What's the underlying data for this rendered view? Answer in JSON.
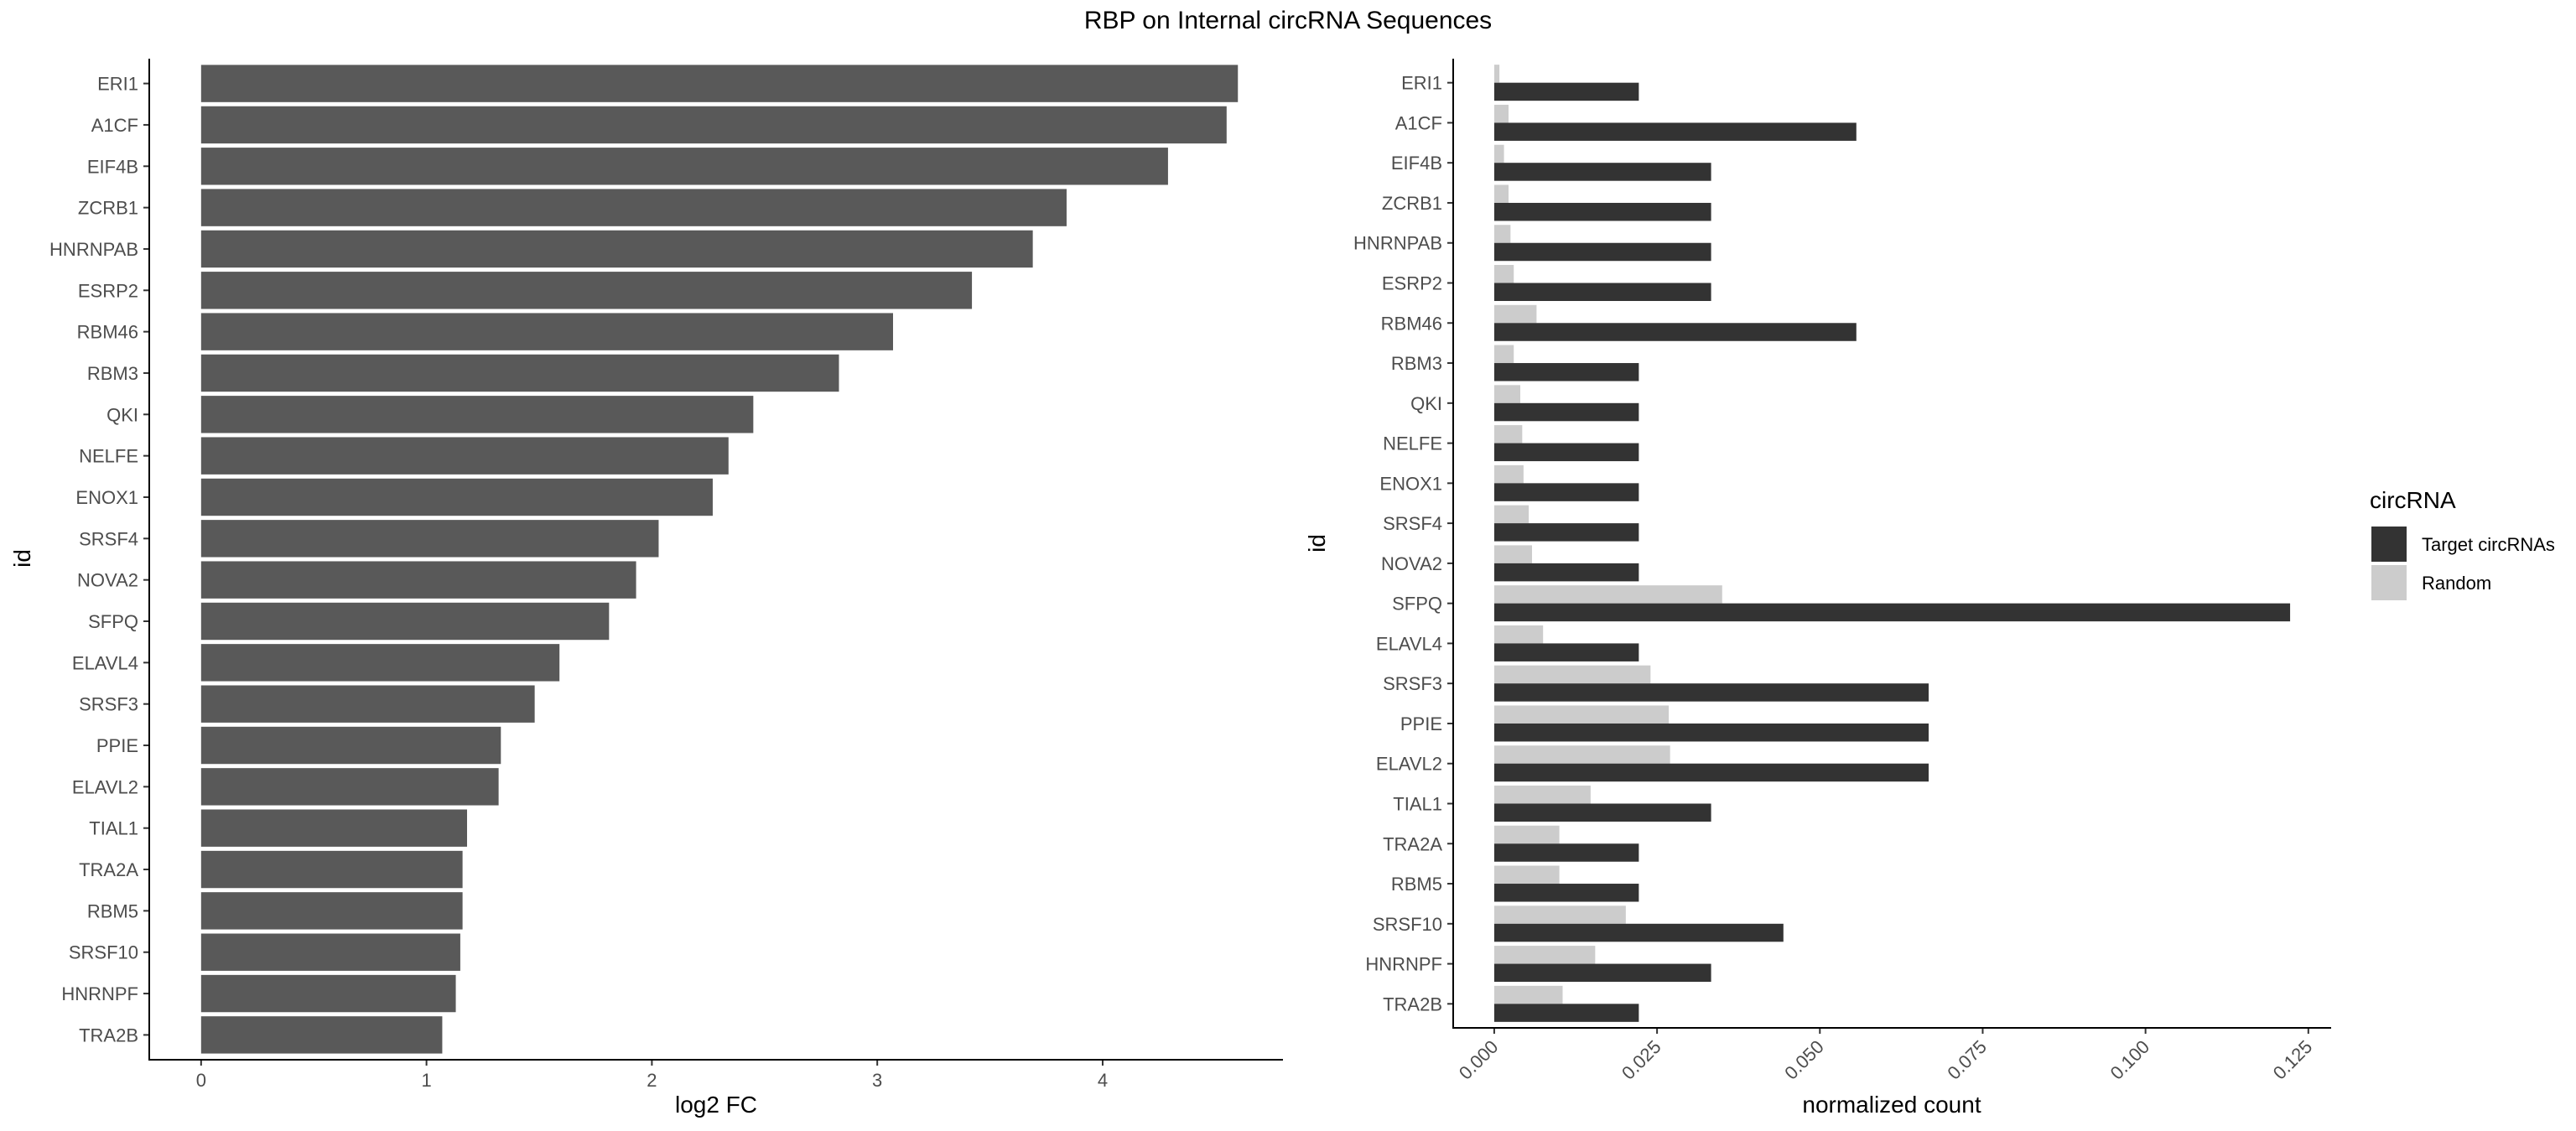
{
  "title": "RBP on Internal circRNA Sequences",
  "colors": {
    "log2fc_bar": "#595959",
    "target": "#333333",
    "random": "#cccccc"
  },
  "chart_data": [
    {
      "type": "bar",
      "orientation": "horizontal",
      "categories": [
        "ERI1",
        "A1CF",
        "EIF4B",
        "ZCRB1",
        "HNRNPAB",
        "ESRP2",
        "RBM46",
        "RBM3",
        "QKI",
        "NELFE",
        "ENOX1",
        "SRSF4",
        "NOVA2",
        "SFPQ",
        "ELAVL4",
        "SRSF3",
        "PPIE",
        "ELAVL2",
        "TIAL1",
        "TRA2A",
        "RBM5",
        "SRSF10",
        "HNRNPF",
        "TRA2B"
      ],
      "values": [
        4.6,
        4.55,
        4.29,
        3.84,
        3.69,
        3.42,
        3.07,
        2.83,
        2.45,
        2.34,
        2.27,
        2.03,
        1.93,
        1.81,
        1.59,
        1.48,
        1.33,
        1.32,
        1.18,
        1.16,
        1.16,
        1.15,
        1.13,
        1.07
      ],
      "xlabel": "log2 FC",
      "ylabel": "id",
      "xlim": [
        -0.23,
        4.8
      ],
      "xticks": [
        0,
        1,
        2,
        3,
        4
      ],
      "xtick_labels": [
        "0",
        "1",
        "2",
        "3",
        "4"
      ]
    },
    {
      "type": "bar",
      "orientation": "horizontal",
      "grouping": "dodged",
      "categories": [
        "ERI1",
        "A1CF",
        "EIF4B",
        "ZCRB1",
        "HNRNPAB",
        "ESRP2",
        "RBM46",
        "RBM3",
        "QKI",
        "NELFE",
        "ENOX1",
        "SRSF4",
        "NOVA2",
        "SFPQ",
        "ELAVL4",
        "SRSF3",
        "PPIE",
        "ELAVL2",
        "TIAL1",
        "TRA2A",
        "RBM5",
        "SRSF10",
        "HNRNPF",
        "TRA2B"
      ],
      "series": [
        {
          "name": "Target circRNAs",
          "values": [
            0.0222,
            0.0556,
            0.0333,
            0.0333,
            0.0333,
            0.0333,
            0.0556,
            0.0222,
            0.0222,
            0.0222,
            0.0222,
            0.0222,
            0.0222,
            0.1222,
            0.0222,
            0.0667,
            0.0667,
            0.0667,
            0.0333,
            0.0222,
            0.0222,
            0.0444,
            0.0333,
            0.0222
          ]
        },
        {
          "name": "Random",
          "values": [
            0.0008,
            0.0022,
            0.0015,
            0.0022,
            0.0025,
            0.003,
            0.0065,
            0.003,
            0.004,
            0.0043,
            0.0045,
            0.0053,
            0.0058,
            0.035,
            0.0075,
            0.024,
            0.0268,
            0.027,
            0.0148,
            0.01,
            0.01,
            0.0202,
            0.0155,
            0.0105
          ]
        }
      ],
      "xlabel": "normalized count",
      "ylabel": "id",
      "xlim": [
        -0.0063,
        0.1285
      ],
      "xticks": [
        0,
        0.025,
        0.05,
        0.075,
        0.1,
        0.125
      ],
      "xtick_labels": [
        "0.000",
        "0.025",
        "0.050",
        "0.075",
        "0.100",
        "0.125"
      ],
      "legend": {
        "title": "circRNA",
        "position": "right"
      }
    }
  ]
}
